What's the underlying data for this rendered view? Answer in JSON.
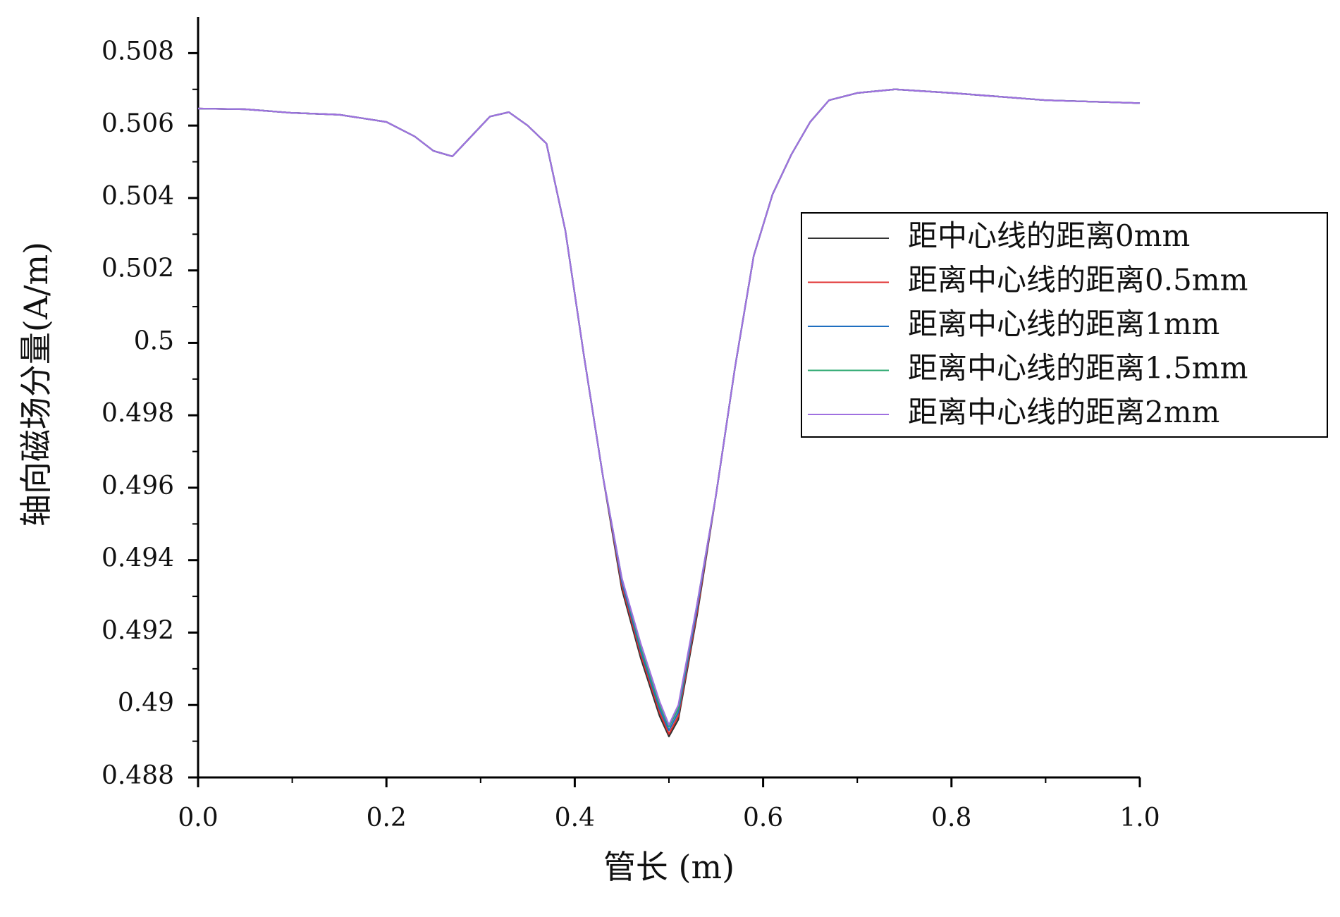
{
  "chart_data": {
    "type": "line",
    "x_label": "管长 (m)",
    "y_label": "轴向磁场分量(A/m)",
    "x": [
      0,
      0.05,
      0.1,
      0.15,
      0.2,
      0.23,
      0.25,
      0.27,
      0.29,
      0.31,
      0.33,
      0.35,
      0.37,
      0.39,
      0.41,
      0.43,
      0.45,
      0.47,
      0.49,
      0.5,
      0.51,
      0.53,
      0.55,
      0.57,
      0.59,
      0.61,
      0.63,
      0.65,
      0.67,
      0.7,
      0.74,
      0.8,
      0.9,
      1.0
    ],
    "series": [
      {
        "name": "距中心线的距离0mm",
        "color": "#333333",
        "values": [
          0.50647,
          0.50645,
          0.50635,
          0.5063,
          0.5061,
          0.5057,
          0.5053,
          0.50515,
          0.5057,
          0.50625,
          0.50637,
          0.506,
          0.5055,
          0.5031,
          0.4996,
          0.4963,
          0.4932,
          0.4913,
          0.4897,
          0.48913,
          0.4896,
          0.4925,
          0.4958,
          0.4993,
          0.5024,
          0.5041,
          0.5052,
          0.5061,
          0.5067,
          0.5069,
          0.507,
          0.5069,
          0.5067,
          0.50662
        ]
      },
      {
        "name": "距离中心线的距离0.5mm",
        "color": "#e03030",
        "values": [
          0.50647,
          0.50645,
          0.50635,
          0.5063,
          0.5061,
          0.5057,
          0.5053,
          0.50515,
          0.5057,
          0.50625,
          0.50637,
          0.506,
          0.5055,
          0.5031,
          0.4996,
          0.4963,
          0.4933,
          0.4914,
          0.4898,
          0.4892,
          0.4897,
          0.4926,
          0.4958,
          0.4993,
          0.5024,
          0.5041,
          0.5052,
          0.5061,
          0.5067,
          0.5069,
          0.507,
          0.5069,
          0.5067,
          0.50662
        ]
      },
      {
        "name": "距离中心线的距离1mm",
        "color": "#1f6fc0",
        "values": [
          0.50647,
          0.50645,
          0.50635,
          0.5063,
          0.5061,
          0.5057,
          0.5053,
          0.50515,
          0.5057,
          0.50625,
          0.50637,
          0.506,
          0.5055,
          0.5031,
          0.4996,
          0.4963,
          0.4934,
          0.4915,
          0.4899,
          0.4893,
          0.4898,
          0.4927,
          0.4958,
          0.4993,
          0.5024,
          0.5041,
          0.5052,
          0.5061,
          0.5067,
          0.5069,
          0.507,
          0.5069,
          0.5067,
          0.50662
        ]
      },
      {
        "name": "距离中心线的距离1.5mm",
        "color": "#2ca870",
        "values": [
          0.50647,
          0.50645,
          0.50635,
          0.5063,
          0.5061,
          0.5057,
          0.5053,
          0.50515,
          0.5057,
          0.50625,
          0.50637,
          0.506,
          0.5055,
          0.5031,
          0.4996,
          0.4963,
          0.4935,
          0.4916,
          0.49,
          0.4894,
          0.4899,
          0.4928,
          0.4958,
          0.4993,
          0.5024,
          0.5041,
          0.5052,
          0.5061,
          0.5067,
          0.5069,
          0.507,
          0.5069,
          0.5067,
          0.50662
        ]
      },
      {
        "name": "距离中心线的距离2mm",
        "color": "#a070e0",
        "values": [
          0.50647,
          0.50645,
          0.50635,
          0.5063,
          0.5061,
          0.5057,
          0.5053,
          0.50515,
          0.5057,
          0.50625,
          0.50637,
          0.506,
          0.5055,
          0.5031,
          0.4996,
          0.4963,
          0.4935,
          0.4917,
          0.4901,
          0.48945,
          0.49,
          0.4928,
          0.4958,
          0.4993,
          0.5024,
          0.5041,
          0.5052,
          0.5061,
          0.5067,
          0.5069,
          0.507,
          0.5069,
          0.5067,
          0.50662
        ]
      }
    ],
    "xlim": [
      0,
      1
    ],
    "xticks": [
      {
        "value": 0,
        "label": "0.0"
      },
      0.2,
      0.4,
      0.6,
      0.8,
      {
        "value": 1,
        "label": "1.0"
      }
    ],
    "xminorticks": [
      0.1,
      0.3,
      0.5,
      0.7,
      0.9
    ],
    "ylim": [
      0.488,
      0.509
    ],
    "yticks": [
      0.488,
      0.49,
      0.492,
      0.494,
      0.496,
      0.498,
      0.5,
      0.502,
      0.504,
      0.506,
      0.508
    ],
    "yminorticks": [
      0.489,
      0.491,
      0.493,
      0.495,
      0.497,
      0.499,
      0.501,
      0.503,
      0.505,
      0.507
    ],
    "legend": "upper right",
    "grid": false
  }
}
